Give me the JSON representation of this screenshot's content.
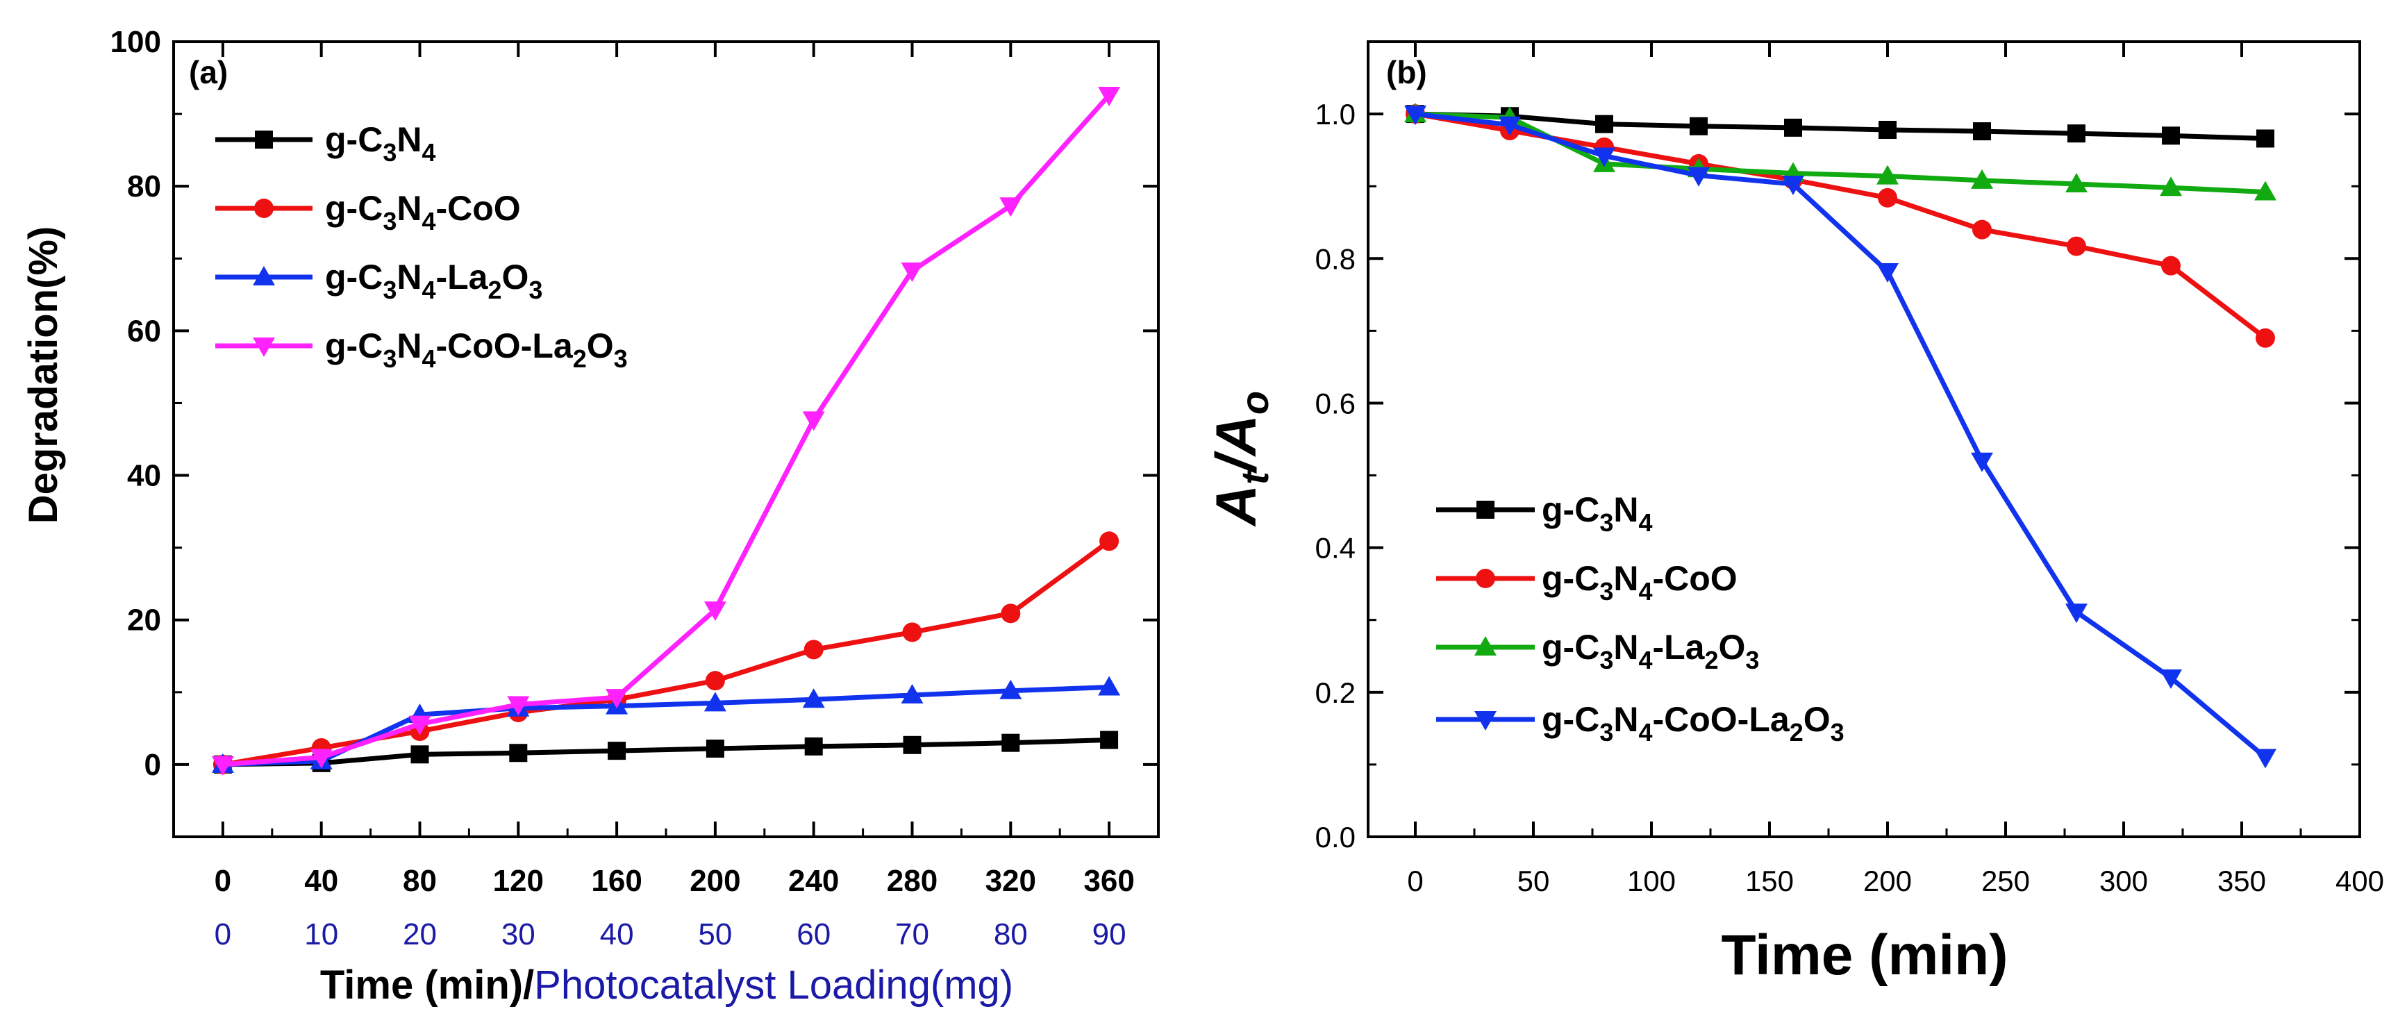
{
  "chart_data": [
    {
      "type": "line",
      "panel_label": "(a)",
      "title": "",
      "xlabel_black": "Time (min)/",
      "xlabel_blue": "Photocatalyst Loading(mg)",
      "ylabel": "Degradation(%)",
      "x": [
        0,
        40,
        80,
        120,
        160,
        200,
        240,
        280,
        320,
        360
      ],
      "x_tick_labels": [
        "0",
        "40",
        "80",
        "120",
        "160",
        "200",
        "240",
        "280",
        "320",
        "360"
      ],
      "x_secondary_tick_labels": [
        "0",
        "10",
        "20",
        "30",
        "40",
        "50",
        "60",
        "70",
        "80",
        "90"
      ],
      "y_ticks": [
        0,
        20,
        40,
        60,
        80,
        100
      ],
      "y_tick_labels": [
        "0",
        "20",
        "40",
        "60",
        "80",
        "100"
      ],
      "xlim": [
        -20,
        380
      ],
      "ylim": [
        -10,
        100
      ],
      "legend_position": "top-left",
      "series": [
        {
          "name": "g-C3N4",
          "base": "g-C",
          "s1": "3",
          "m1": "N",
          "s2": "4",
          "m2": "",
          "s3": "",
          "m3": "",
          "s4": "",
          "color": "#000000",
          "marker": "square",
          "values": [
            0,
            0.2,
            1.4,
            1.6,
            1.9,
            2.2,
            2.5,
            2.7,
            3.0,
            3.4
          ]
        },
        {
          "name": "g-C3N4-CoO",
          "base": "g-C",
          "s1": "3",
          "m1": "N",
          "s2": "4",
          "m2": "-CoO",
          "s3": "",
          "m3": "",
          "s4": "",
          "color": "#ee1111",
          "marker": "circle",
          "values": [
            0,
            2.3,
            4.6,
            7.2,
            9.0,
            11.6,
            15.9,
            18.3,
            20.9,
            30.9
          ]
        },
        {
          "name": "g-C3N4-La2O3",
          "base": "g-C",
          "s1": "3",
          "m1": "N",
          "s2": "4",
          "m2": "-La",
          "s3": "2",
          "m3": "O",
          "s4": "3",
          "color": "#1133ee",
          "marker": "triangle-up",
          "values": [
            0,
            0.5,
            6.9,
            7.8,
            8.1,
            8.5,
            9.0,
            9.6,
            10.2,
            10.7
          ]
        },
        {
          "name": "g-C3N4-CoO-La2O3",
          "base": "g-C",
          "s1": "3",
          "m1": "N",
          "s2": "4",
          "m2": "-CoO-La",
          "s3": "2",
          "m3": "O",
          "s4": "3",
          "color": "#ff22ff",
          "marker": "triangle-down",
          "values": [
            0,
            1.0,
            5.6,
            8.3,
            9.3,
            21.4,
            47.7,
            68.3,
            77.3,
            92.6
          ]
        }
      ]
    },
    {
      "type": "line",
      "panel_label": "(b)",
      "title": "",
      "xlabel": "Time (min)",
      "ylabel_main": "A",
      "ylabel_sub1": "t",
      "ylabel_slash": "/A",
      "ylabel_sub2": "o",
      "x": [
        0,
        40,
        80,
        120,
        160,
        200,
        240,
        280,
        320,
        360
      ],
      "x_ticks": [
        0,
        50,
        100,
        150,
        200,
        250,
        300,
        350,
        400
      ],
      "x_tick_labels": [
        "0",
        "50",
        "100",
        "150",
        "200",
        "250",
        "300",
        "350",
        "400"
      ],
      "y_ticks": [
        0.0,
        0.2,
        0.4,
        0.6,
        0.8,
        1.0
      ],
      "y_tick_labels": [
        "0.0",
        "0.2",
        "0.4",
        "0.6",
        "0.8",
        "1.0"
      ],
      "xlim": [
        -20,
        400
      ],
      "ylim": [
        0.0,
        1.1
      ],
      "legend_position": "bottom-left",
      "series": [
        {
          "name": "g-C3N4",
          "base": "g-C",
          "s1": "3",
          "m1": "N",
          "s2": "4",
          "m2": "",
          "s3": "",
          "m3": "",
          "s4": "",
          "color": "#000000",
          "marker": "square",
          "values": [
            1.0,
            0.997,
            0.986,
            0.983,
            0.981,
            0.978,
            0.976,
            0.973,
            0.97,
            0.966
          ]
        },
        {
          "name": "g-C3N4-CoO",
          "base": "g-C",
          "s1": "3",
          "m1": "N",
          "s2": "4",
          "m2": "-CoO",
          "s3": "",
          "m3": "",
          "s4": "",
          "color": "#ee1111",
          "marker": "circle",
          "values": [
            1.0,
            0.977,
            0.954,
            0.931,
            0.909,
            0.884,
            0.84,
            0.817,
            0.79,
            0.69
          ]
        },
        {
          "name": "g-C3N4-La2O3",
          "base": "g-C",
          "s1": "3",
          "m1": "N",
          "s2": "4",
          "m2": "-La",
          "s3": "2",
          "m3": "O",
          "s4": "3",
          "color": "#11aa11",
          "marker": "triangle-up",
          "values": [
            1.0,
            0.995,
            0.931,
            0.924,
            0.918,
            0.914,
            0.908,
            0.903,
            0.898,
            0.892
          ]
        },
        {
          "name": "g-C3N4-CoO-La2O3",
          "base": "g-C",
          "s1": "3",
          "m1": "N",
          "s2": "4",
          "m2": "-CoO-La",
          "s3": "2",
          "m3": "O",
          "s4": "3",
          "color": "#1133ee",
          "marker": "triangle-down",
          "values": [
            1.0,
            0.985,
            0.942,
            0.915,
            0.903,
            0.782,
            0.52,
            0.311,
            0.22,
            0.11
          ]
        }
      ]
    }
  ]
}
